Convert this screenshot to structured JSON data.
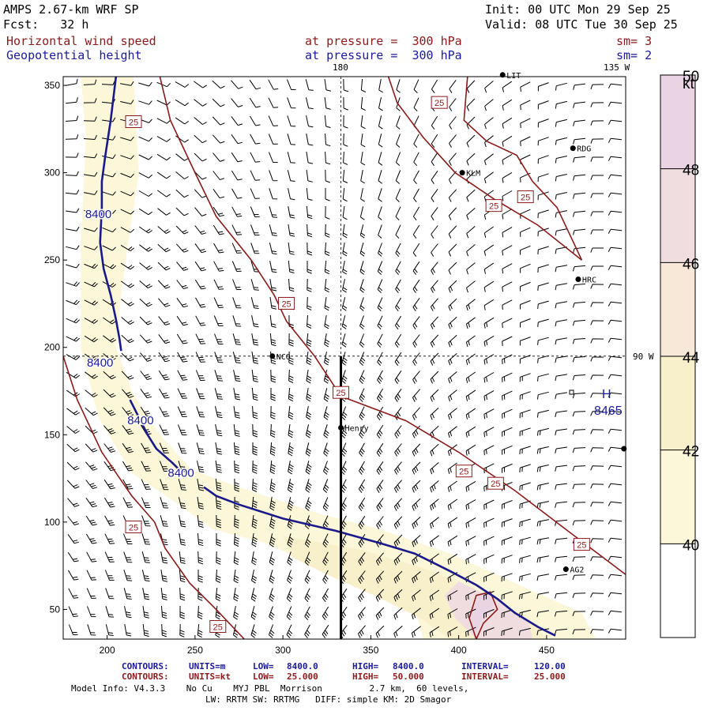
{
  "header": {
    "model": "AMPS 2.67-km WRF SP",
    "init": "Init: 00 UTC Mon 29 Sep 25",
    "fcst": "Fcst:   32 h",
    "valid": "Valid: 08 UTC Tue 30 Sep 25",
    "field1": "Horizontal wind speed",
    "field1_level": "at pressure =  300 hPa",
    "field1_sm": "sm= 3",
    "field2": "Geopotential height",
    "field2_level": "at pressure =  300 hPa",
    "field2_sm": "sm= 2"
  },
  "map_labels": {
    "lon_180": "180",
    "lon_135w": "135 W",
    "lon_90w": "90 W",
    "high_symbol": "H",
    "high_value": "8465"
  },
  "stations": [
    {
      "name": "LIT",
      "x": 425,
      "y": 356
    },
    {
      "name": "RDG",
      "x": 465,
      "y": 314
    },
    {
      "name": "KLM",
      "x": 402,
      "y": 300
    },
    {
      "name": "HRC",
      "x": 468,
      "y": 239
    },
    {
      "name": "NCO",
      "x": 294,
      "y": 195
    },
    {
      "name": "Henry",
      "x": 333,
      "y": 154
    },
    {
      "name": "AG2",
      "x": 461,
      "y": 73
    },
    {
      "name": "",
      "x": 494,
      "y": 142
    }
  ],
  "chart_data": {
    "type": "contour",
    "xlim": [
      175,
      495
    ],
    "ylim": [
      33,
      355
    ],
    "xticks": [
      200,
      250,
      300,
      350,
      400,
      450
    ],
    "yticks": [
      50,
      100,
      150,
      200,
      250,
      300,
      350
    ],
    "colorbar": {
      "unit": "kt",
      "levels": [
        40,
        42,
        44,
        46,
        48,
        50
      ],
      "colors": [
        "#ffffff",
        "#fbf7d8",
        "#f8efcb",
        "#f8e8d8",
        "#f0dde0",
        "#ead4e4"
      ]
    },
    "cross_section": {
      "x": 333,
      "y0": 33,
      "y1": 195
    },
    "guide_lines": {
      "vertical_x": 333,
      "horizontal_y": 195
    },
    "wind_speed_contours": [
      {
        "level": "25",
        "points": [
          [
            230,
            355
          ],
          [
            236,
            330
          ],
          [
            250,
            300
          ],
          [
            262,
            275
          ],
          [
            282,
            250
          ],
          [
            295,
            230
          ],
          [
            302,
            215
          ],
          [
            318,
            195
          ],
          [
            333,
            172
          ],
          [
            370,
            158
          ],
          [
            400,
            140
          ],
          [
            432,
            118
          ],
          [
            462,
            95
          ],
          [
            495,
            70
          ]
        ]
      },
      {
        "level": "25",
        "points": [
          [
            175,
            195
          ],
          [
            183,
            170
          ],
          [
            197,
            140
          ],
          [
            214,
            115
          ],
          [
            227,
            100
          ],
          [
            233,
            85
          ],
          [
            247,
            65
          ],
          [
            262,
            50
          ],
          [
            278,
            33
          ]
        ]
      },
      {
        "level": "25",
        "points": [
          [
            405,
            355
          ],
          [
            403,
            330
          ],
          [
            416,
            318
          ],
          [
            433,
            310
          ],
          [
            442,
            295
          ],
          [
            456,
            280
          ],
          [
            470,
            250
          ],
          [
            445,
            270
          ],
          [
            420,
            285
          ],
          [
            398,
            300
          ],
          [
            380,
            320
          ],
          [
            365,
            340
          ],
          [
            360,
            355
          ]
        ]
      },
      {
        "level": "",
        "points": [
          [
            410,
            33
          ],
          [
            414,
            42
          ],
          [
            422,
            50
          ],
          [
            418,
            60
          ],
          [
            410,
            58
          ],
          [
            406,
            45
          ],
          [
            410,
            33
          ]
        ]
      }
    ],
    "contour_labels": [
      {
        "text": "25",
        "x": 215,
        "y": 329
      },
      {
        "text": "25",
        "x": 389,
        "y": 340
      },
      {
        "text": "25",
        "x": 438,
        "y": 286
      },
      {
        "text": "25",
        "x": 420,
        "y": 281
      },
      {
        "text": "25",
        "x": 302,
        "y": 225
      },
      {
        "text": "25",
        "x": 333,
        "y": 174
      },
      {
        "text": "25",
        "x": 403,
        "y": 129
      },
      {
        "text": "25",
        "x": 421,
        "y": 122
      },
      {
        "text": "25",
        "x": 470,
        "y": 87
      },
      {
        "text": "25",
        "x": 215,
        "y": 97
      },
      {
        "text": "25",
        "x": 263,
        "y": 40
      }
    ],
    "height_contours": [
      {
        "level": "8400",
        "points": [
          [
            205,
            355
          ],
          [
            202,
            330
          ],
          [
            199,
            310
          ],
          [
            197,
            295
          ],
          [
            197,
            280
          ],
          [
            196,
            260
          ],
          [
            198,
            245
          ],
          [
            202,
            230
          ],
          [
            205,
            216
          ],
          [
            207,
            205
          ],
          [
            208,
            198
          ]
        ]
      },
      {
        "level": "8400",
        "points": [
          [
            213,
            170
          ],
          [
            218,
            160
          ],
          [
            223,
            150
          ],
          [
            228,
            142
          ],
          [
            237,
            134
          ],
          [
            243,
            128
          ]
        ]
      },
      {
        "level": "8400",
        "points": [
          [
            255,
            120
          ],
          [
            262,
            115
          ],
          [
            275,
            110
          ],
          [
            300,
            102
          ],
          [
            330,
            95
          ],
          [
            355,
            88
          ],
          [
            375,
            82
          ],
          [
            395,
            72
          ],
          [
            410,
            64
          ],
          [
            422,
            56
          ],
          [
            432,
            48
          ],
          [
            445,
            40
          ],
          [
            455,
            35
          ]
        ]
      }
    ],
    "height_labels": [
      {
        "text": "8400",
        "x": 195,
        "y": 274
      },
      {
        "text": "8400",
        "x": 196,
        "y": 189
      },
      {
        "text": "8400",
        "x": 219,
        "y": 156
      },
      {
        "text": "8400",
        "x": 242,
        "y": 126
      }
    ],
    "speed_shading": [
      {
        "level": 41,
        "points": [
          [
            185,
            355
          ],
          [
            215,
            355
          ],
          [
            218,
            300
          ],
          [
            212,
            260
          ],
          [
            208,
            230
          ],
          [
            205,
            200
          ],
          [
            214,
            175
          ],
          [
            230,
            150
          ],
          [
            248,
            130
          ],
          [
            275,
            120
          ],
          [
            320,
            105
          ],
          [
            355,
            96
          ],
          [
            395,
            82
          ],
          [
            430,
            66
          ],
          [
            470,
            48
          ],
          [
            478,
            33
          ],
          [
            380,
            33
          ],
          [
            375,
            50
          ],
          [
            345,
            65
          ],
          [
            312,
            78
          ],
          [
            290,
            88
          ],
          [
            260,
            96
          ],
          [
            238,
            112
          ],
          [
            214,
            128
          ],
          [
            195,
            160
          ],
          [
            185,
            200
          ],
          [
            185,
            260
          ],
          [
            188,
            320
          ]
        ]
      },
      {
        "level": 43,
        "points": [
          [
            300,
            92
          ],
          [
            345,
            84
          ],
          [
            385,
            72
          ],
          [
            415,
            58
          ],
          [
            440,
            45
          ],
          [
            450,
            33
          ],
          [
            395,
            33
          ],
          [
            380,
            44
          ],
          [
            352,
            58
          ],
          [
            325,
            70
          ],
          [
            305,
            80
          ]
        ]
      },
      {
        "level": 46,
        "points": [
          [
            400,
            66
          ],
          [
            425,
            54
          ],
          [
            440,
            42
          ],
          [
            442,
            33
          ],
          [
            410,
            33
          ],
          [
            398,
            45
          ],
          [
            392,
            58
          ]
        ]
      },
      {
        "level": 49,
        "points": [
          [
            409,
            33
          ],
          [
            413,
            44
          ],
          [
            420,
            52
          ],
          [
            418,
            60
          ],
          [
            411,
            58
          ],
          [
            407,
            46
          ]
        ]
      }
    ],
    "footer": {
      "line1": {
        "label": "CONTOURS:",
        "units": "UNITS=m",
        "low_label": "LOW=",
        "low": "8400.0",
        "high_label": "HIGH=",
        "high": "8400.0",
        "interval_label": "INTERVAL=",
        "interval": "120.00"
      },
      "line2": {
        "label": "CONTOURS:",
        "units": "UNITS=kt",
        "low_label": "LOW=",
        "low": "25.000",
        "high_label": "HIGH=",
        "high": "50.000",
        "interval_label": "INTERVAL=",
        "interval": "25.000"
      },
      "model_info": "Model Info: V4.3.3    No Cu    MYJ PBL  Morrison         2.7 km,  60 levels,",
      "model_info2": "LW: RRTM SW: RRTMG   DIFF: simple KM: 2D Smagor"
    }
  }
}
